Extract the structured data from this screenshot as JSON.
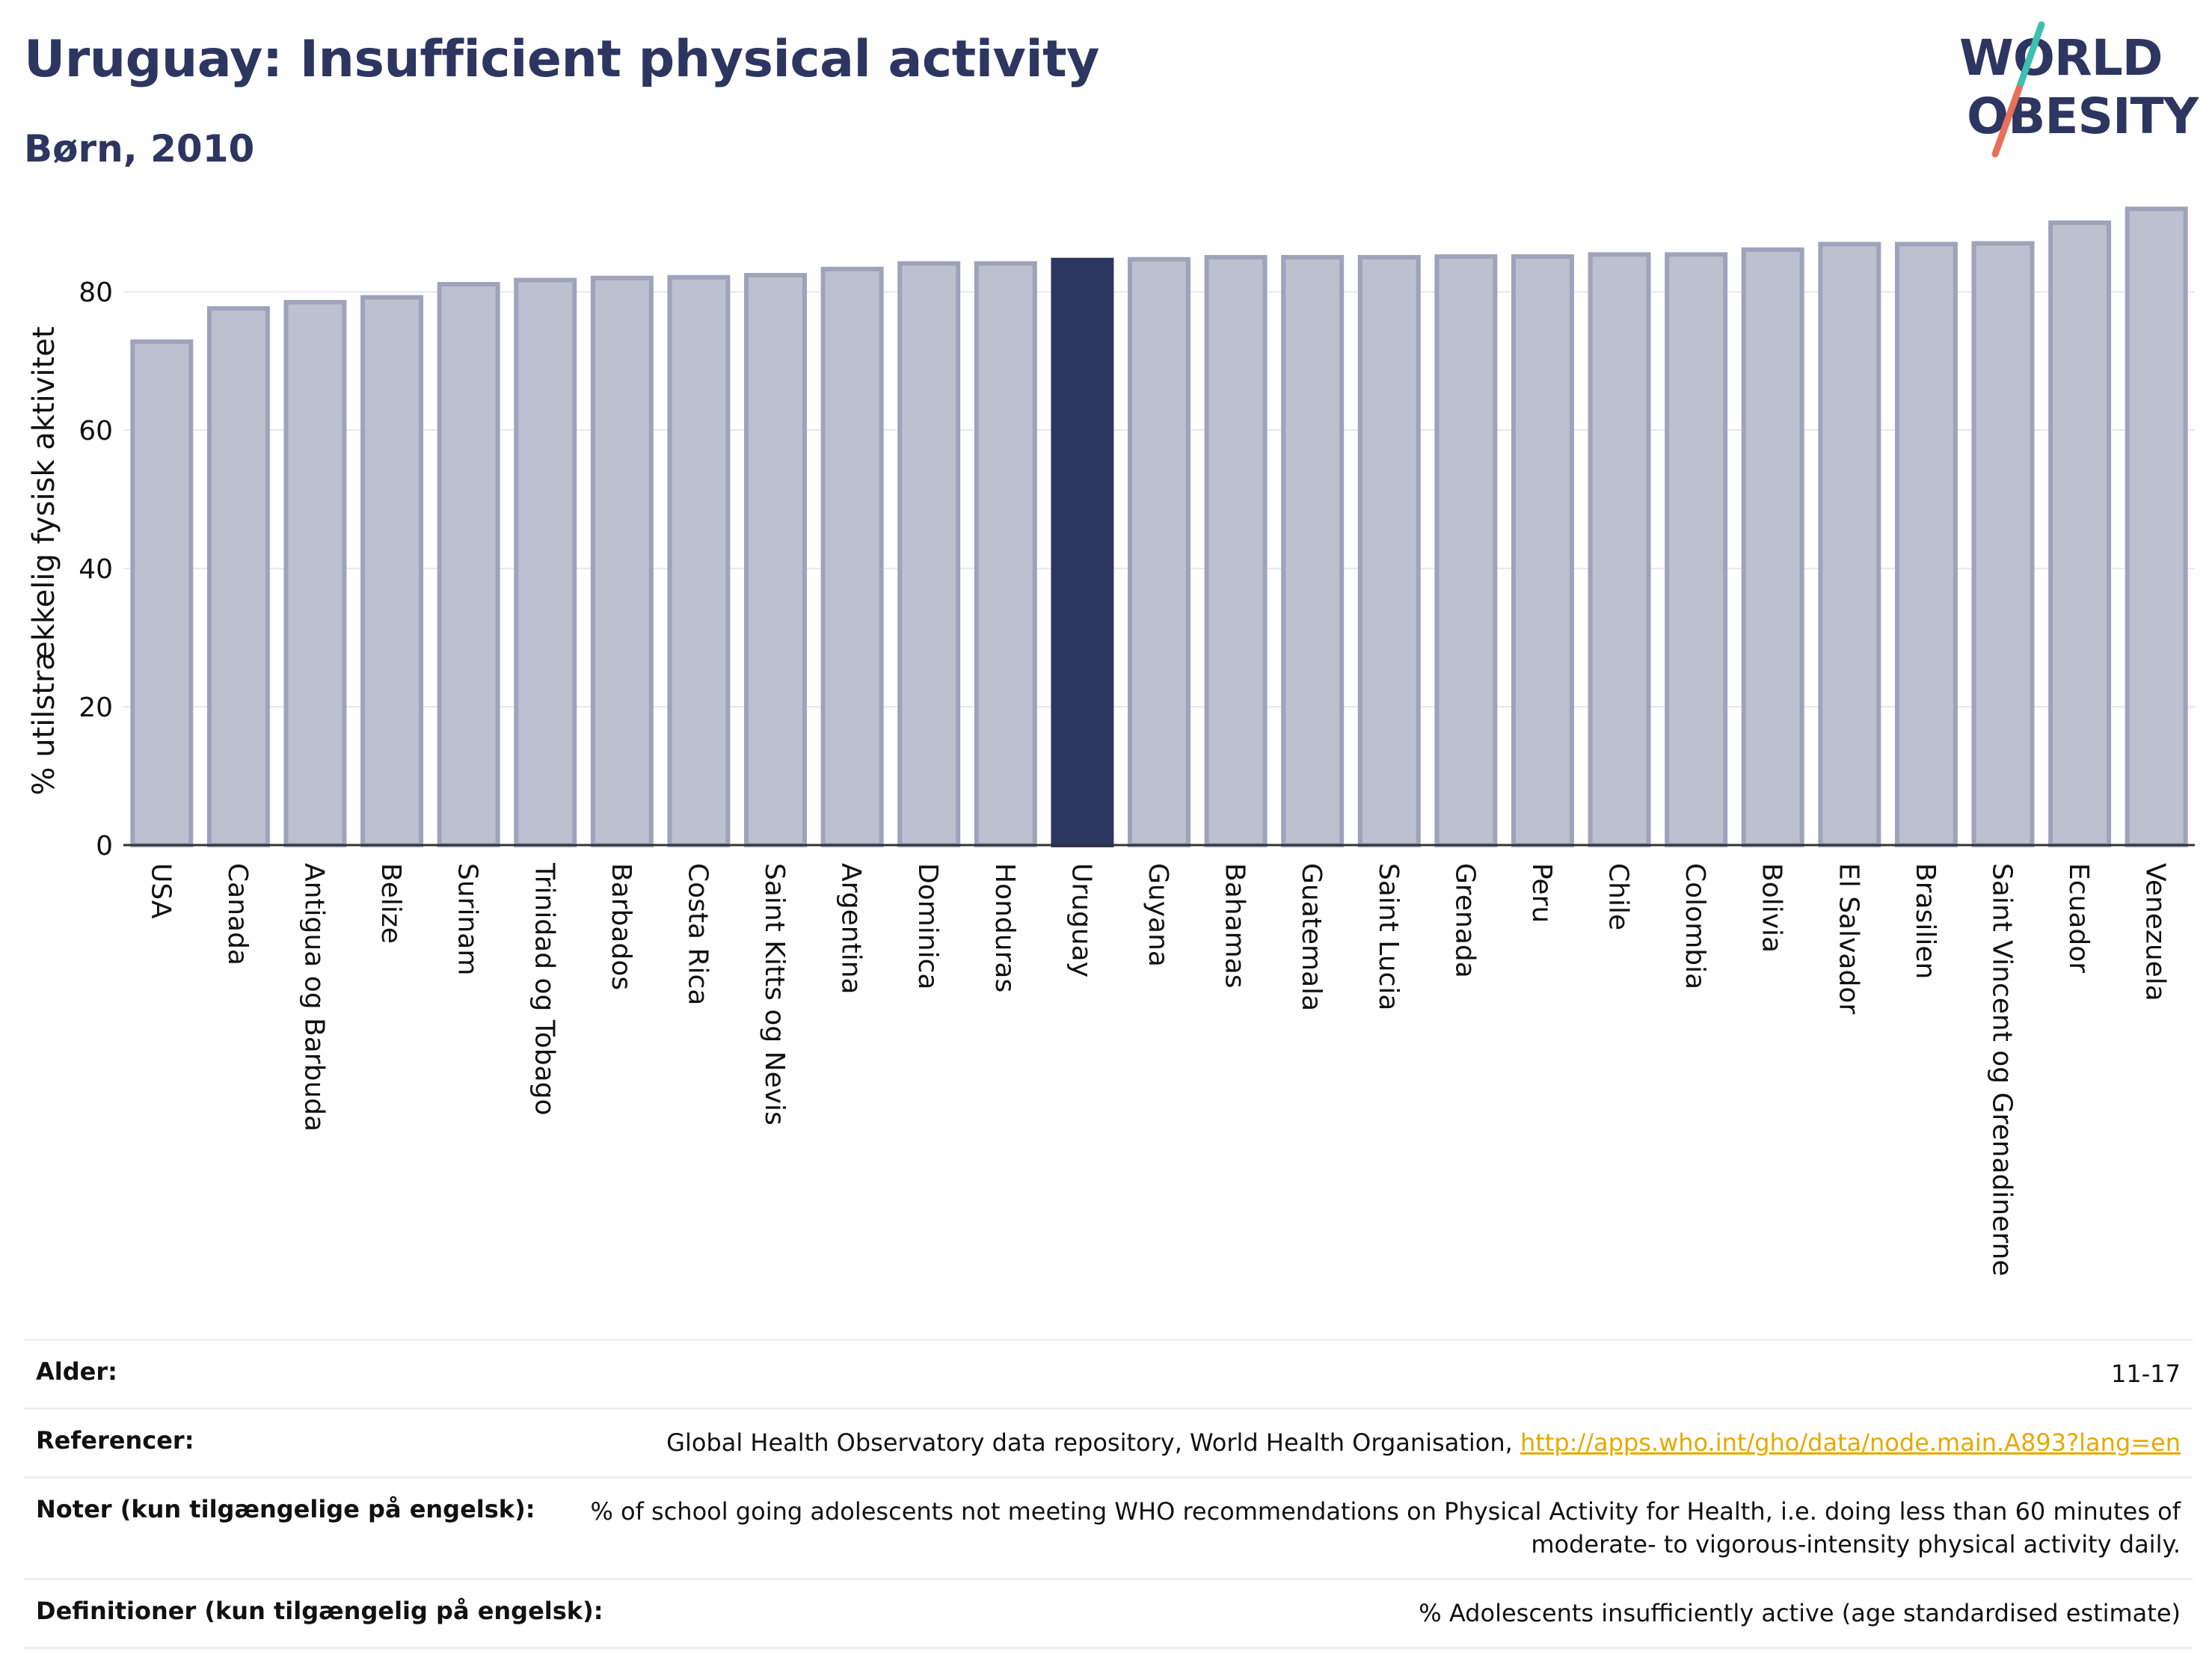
{
  "header": {
    "title": "Uruguay: Insufficient physical activity",
    "subtitle": "Børn, 2010"
  },
  "logo": {
    "line1": "WORLD",
    "line2": "OBESITY",
    "colors": {
      "text": "#2d3561",
      "slash_top": "#3fbfb0",
      "slash_bottom": "#e8705a"
    }
  },
  "colors": {
    "highlight": "#2d3561",
    "bar_fill": "#bcc0cf",
    "bar_stroke": "#9ea3bb",
    "link": "#e8a800"
  },
  "chart_data": {
    "type": "bar",
    "ylabel": "% utilstrækkelig fysisk aktivitet",
    "xlabel": "",
    "ylim": [
      0,
      93
    ],
    "yticks": [
      0,
      20,
      40,
      60,
      80
    ],
    "grid": true,
    "highlight": "Uruguay",
    "categories": [
      "USA",
      "Canada",
      "Antigua og Barbuda",
      "Belize",
      "Surinam",
      "Trinidad og Tobago",
      "Barbados",
      "Costa Rica",
      "Saint Kitts og Nevis",
      "Argentina",
      "Dominica",
      "Honduras",
      "Uruguay",
      "Guyana",
      "Bahamas",
      "Guatemala",
      "Saint Lucia",
      "Grenada",
      "Peru",
      "Chile",
      "Colombia",
      "Bolivia",
      "El Salvador",
      "Brasilien",
      "Saint Vincent og Grenadinerne",
      "Ecuador",
      "Venezuela"
    ],
    "values": [
      72.8,
      77.6,
      78.5,
      79.2,
      81.1,
      81.7,
      82.0,
      82.1,
      82.4,
      83.3,
      84.1,
      84.1,
      84.6,
      84.7,
      85.0,
      85.0,
      85.0,
      85.1,
      85.1,
      85.4,
      85.4,
      86.1,
      86.9,
      86.9,
      87.0,
      90.0,
      92.0
    ]
  },
  "info": {
    "age_label": "Alder:",
    "age_value": "11-17",
    "refs_label": "Referencer:",
    "refs_text": "Global Health Observatory data repository, World Health Organisation, ",
    "refs_link": "http://apps.who.int/gho/data/node.main.A893?lang=en",
    "notes_label": "Noter (kun tilgængelige på engelsk):",
    "notes_line1": "% of school going adolescents not meeting WHO recommendations on Physical Activity for Health, i.e. doing less than 60 minutes of",
    "notes_line2": "moderate- to vigorous-intensity physical activity daily.",
    "defs_label": "Definitioner (kun tilgængelig på engelsk):",
    "defs_value": "% Adolescents insufficiently active (age standardised estimate)"
  }
}
